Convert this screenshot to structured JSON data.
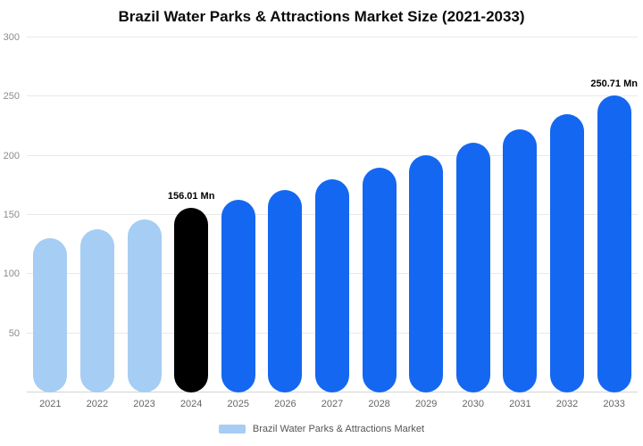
{
  "title": "Brazil Water Parks & Attractions Market Size (2021-2033)",
  "legend": {
    "label": "Brazil Water Parks & Attractions Market",
    "swatch_color": "#a6cdf3"
  },
  "colors": {
    "light_blue": "#a6cdf3",
    "highlight_black": "#000000",
    "primary_blue": "#1467f0"
  },
  "chart_data": {
    "type": "bar",
    "title": "Brazil Water Parks & Attractions Market Size (2021-2033)",
    "categories": [
      "2021",
      "2022",
      "2023",
      "2024",
      "2025",
      "2026",
      "2027",
      "2028",
      "2029",
      "2030",
      "2031",
      "2032",
      "2033"
    ],
    "values": [
      130.5,
      138,
      146,
      156.01,
      163,
      171,
      180.5,
      190,
      200.5,
      211,
      222.5,
      235,
      250.71
    ],
    "bar_colors": [
      "#a6cdf3",
      "#a6cdf3",
      "#a6cdf3",
      "#000000",
      "#1467f0",
      "#1467f0",
      "#1467f0",
      "#1467f0",
      "#1467f0",
      "#1467f0",
      "#1467f0",
      "#1467f0",
      "#1467f0"
    ],
    "annotations": [
      {
        "index": 3,
        "text": "156.01 Mn"
      },
      {
        "index": 12,
        "text": "250.71 Mn"
      }
    ],
    "xlabel": "",
    "ylabel": "",
    "ylim": [
      0,
      300
    ],
    "yticks": [
      0,
      50,
      100,
      150,
      200,
      250,
      300
    ],
    "grid": true,
    "legend_position": "bottom",
    "unit": "Mn"
  }
}
